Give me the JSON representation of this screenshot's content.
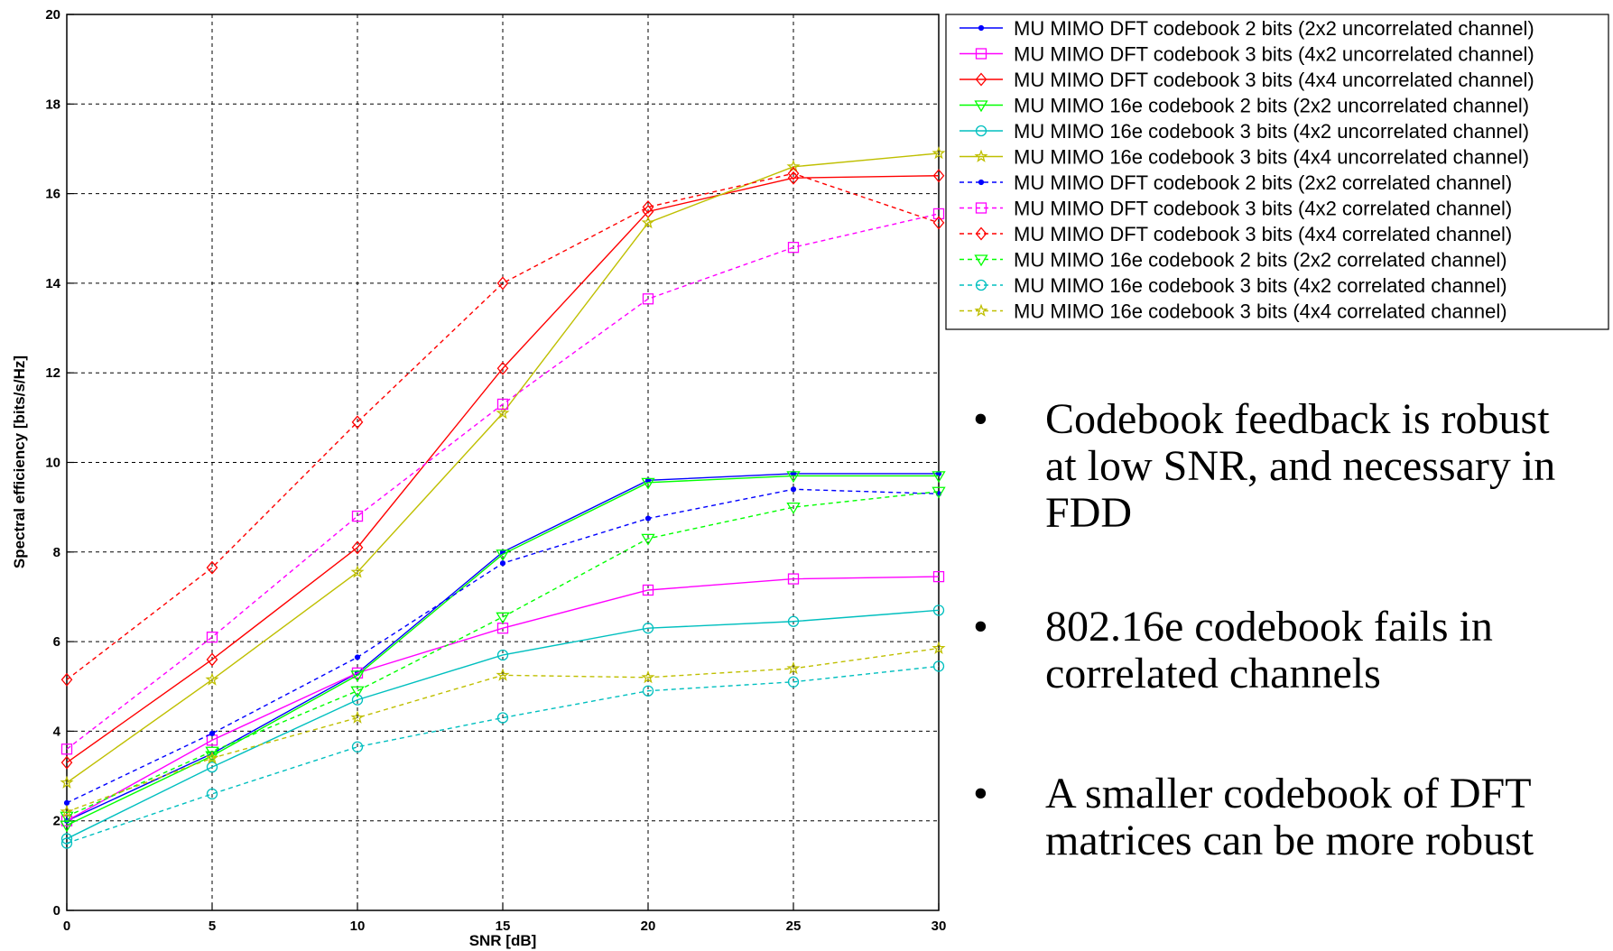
{
  "chart_data": {
    "type": "line",
    "title": "",
    "xlabel": "SNR [dB]",
    "ylabel": "Spectral efficiency [bits/s/Hz]",
    "xlim": [
      0,
      30
    ],
    "ylim": [
      0,
      20
    ],
    "xticks": [
      "0",
      "5",
      "10",
      "15",
      "20",
      "25",
      "30"
    ],
    "yticks": [
      "0",
      "2",
      "4",
      "6",
      "8",
      "10",
      "12",
      "14",
      "16",
      "18",
      "20"
    ],
    "grid": true,
    "legend_position": "top-right, outside plot",
    "x": [
      0,
      5,
      10,
      15,
      20,
      25,
      30
    ],
    "series": [
      {
        "name": "MU MIMO DFT codebook 2 bits (2x2 uncorrelated channel)",
        "color": "#0000ff",
        "style": "solid",
        "marker": "dot",
        "values": [
          2.0,
          3.5,
          5.3,
          8.0,
          9.6,
          9.75,
          9.75
        ]
      },
      {
        "name": "MU MIMO DFT codebook 3 bits (4x2 uncorrelated channel)",
        "color": "#ff00ff",
        "style": "solid",
        "marker": "square",
        "values": [
          2.0,
          3.8,
          5.3,
          6.3,
          7.15,
          7.4,
          7.45
        ]
      },
      {
        "name": "MU MIMO DFT codebook 3 bits (4x4 uncorrelated channel)",
        "color": "#ff0000",
        "style": "solid",
        "marker": "diamond",
        "values": [
          3.3,
          5.6,
          8.1,
          12.1,
          15.6,
          16.35,
          16.4
        ]
      },
      {
        "name": "MU MIMO 16e codebook 2 bits (2x2 uncorrelated channel)",
        "color": "#00ff00",
        "style": "solid",
        "marker": "triangle-down",
        "values": [
          1.9,
          3.45,
          5.25,
          7.95,
          9.55,
          9.7,
          9.7
        ]
      },
      {
        "name": "MU MIMO 16e codebook 3 bits (4x2 uncorrelated channel)",
        "color": "#00bfbf",
        "style": "solid",
        "marker": "circle",
        "values": [
          1.6,
          3.2,
          4.7,
          5.7,
          6.3,
          6.45,
          6.7
        ]
      },
      {
        "name": "MU MIMO 16e codebook 3 bits (4x4 uncorrelated channel)",
        "color": "#bfbf00",
        "style": "solid",
        "marker": "star",
        "values": [
          2.85,
          5.15,
          7.55,
          11.1,
          15.35,
          16.6,
          16.9
        ]
      },
      {
        "name": "MU MIMO DFT codebook 2 bits (2x2 correlated channel)",
        "color": "#0000ff",
        "style": "dashed",
        "marker": "dot",
        "values": [
          2.4,
          3.95,
          5.65,
          7.75,
          8.75,
          9.4,
          9.3
        ]
      },
      {
        "name": "MU MIMO DFT codebook 3 bits (4x2 correlated channel)",
        "color": "#ff00ff",
        "style": "dashed",
        "marker": "square",
        "values": [
          3.6,
          6.1,
          8.8,
          11.3,
          13.65,
          14.8,
          15.55
        ]
      },
      {
        "name": "MU MIMO DFT codebook 3 bits (4x4 correlated channel)",
        "color": "#ff0000",
        "style": "dashed",
        "marker": "diamond",
        "values": [
          5.15,
          7.65,
          10.9,
          14.0,
          15.7,
          16.45,
          15.35
        ]
      },
      {
        "name": "MU MIMO 16e codebook 2 bits (2x2 correlated channel)",
        "color": "#00ff00",
        "style": "dashed",
        "marker": "triangle-down",
        "values": [
          2.1,
          3.55,
          4.9,
          6.55,
          8.3,
          9.0,
          9.35
        ]
      },
      {
        "name": "MU MIMO 16e codebook 3 bits (4x2 correlated channel)",
        "color": "#00bfbf",
        "style": "dashed",
        "marker": "circle",
        "values": [
          1.5,
          2.6,
          3.65,
          4.3,
          4.9,
          5.1,
          5.45
        ]
      },
      {
        "name": "MU MIMO 16e codebook 3 bits (4x4 correlated channel)",
        "color": "#bfbf00",
        "style": "dashed",
        "marker": "star",
        "values": [
          2.2,
          3.4,
          4.3,
          5.25,
          5.2,
          5.4,
          5.85
        ]
      }
    ]
  },
  "bullets": [
    {
      "marker": "•",
      "lines": [
        "Codebook feedback is robust",
        "at low SNR, and necessary in",
        "FDD"
      ]
    },
    {
      "marker": "•",
      "lines": [
        "802.16e codebook fails in",
        "correlated channels"
      ]
    },
    {
      "marker": "•",
      "lines": [
        "A smaller codebook of DFT",
        "matrices can be more robust"
      ]
    }
  ]
}
